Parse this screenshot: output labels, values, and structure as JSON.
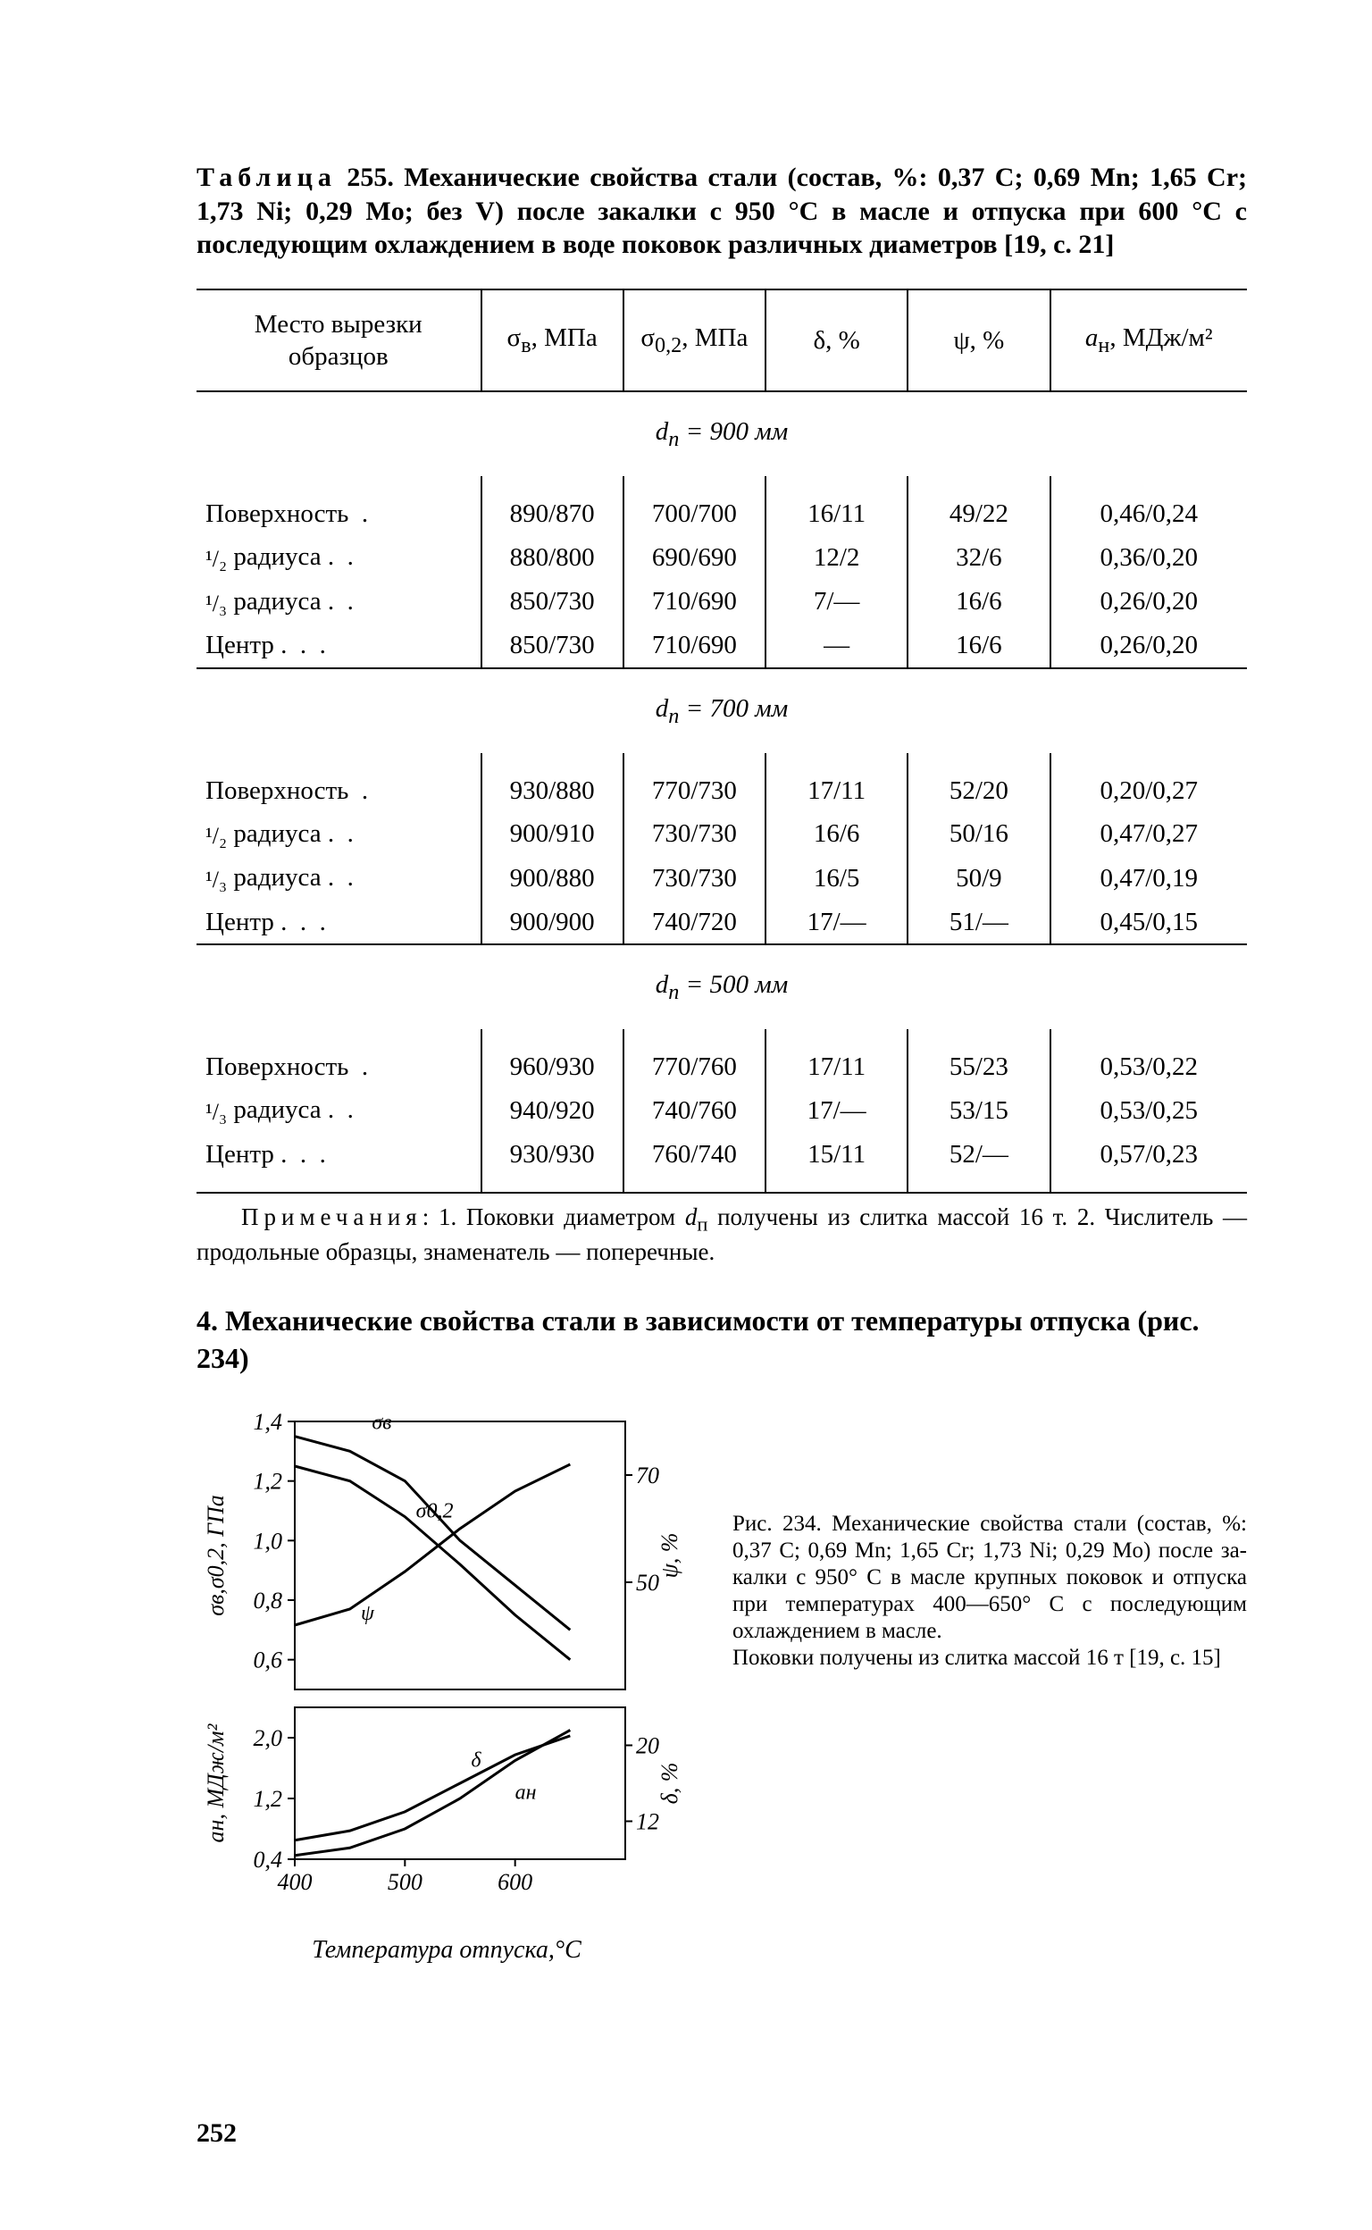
{
  "page_number": "252",
  "table_title_html": "<span class='sp'>Таблица</span> 255. Механические свойства стали (состав, %: 0,37 C; 0,69 Mn; 1,65 Cr; 1,73 Ni; 0,29 Mo; без V) после закалки с 950 °C в масле и отпуска при 600 °C с последующим охлаждением в воде поковок различных диаметров [19, с. 21]",
  "columns": [
    "Место вырезки<br>образцов",
    "σ<sub>в</sub>, МПа",
    "σ<sub>0,2</sub>, МПа",
    "δ, %",
    "ψ, %",
    "<i>a</i><sub>н</sub>, МДж/м²"
  ],
  "sections": [
    {
      "heading_html": "<i>d</i><sub>п</sub> = <i>900 мм</i>",
      "rows": [
        [
          "Поверхность&nbsp;&nbsp;.",
          "890/870",
          "700/700",
          "16/11",
          "49/22",
          "0,46/0,24"
        ],
        [
          "<span class='frac'>¹/₂</span> радиуса .&nbsp;&nbsp;.",
          "880/800",
          "690/690",
          "12/2",
          "32/6",
          "0,36/0,20"
        ],
        [
          "<span class='frac'>¹/₃</span> радиуса .&nbsp;&nbsp;.",
          "850/730",
          "710/690",
          "7/—",
          "16/6",
          "0,26/0,20"
        ],
        [
          "Центр .&nbsp;&nbsp;.&nbsp;&nbsp;.",
          "850/730",
          "710/690",
          "—",
          "16/6",
          "0,26/0,20"
        ]
      ]
    },
    {
      "heading_html": "<i>d</i><sub>п</sub> = <i>700 мм</i>",
      "rows": [
        [
          "Поверхность&nbsp;&nbsp;.",
          "930/880",
          "770/730",
          "17/11",
          "52/20",
          "0,20/0,27"
        ],
        [
          "<span class='frac'>¹/₂</span> радиуса .&nbsp;&nbsp;.",
          "900/910",
          "730/730",
          "16/6",
          "50/16",
          "0,47/0,27"
        ],
        [
          "<span class='frac'>¹/₃</span> радиуса .&nbsp;&nbsp;.",
          "900/880",
          "730/730",
          "16/5",
          "50/9",
          "0,47/0,19"
        ],
        [
          "Центр .&nbsp;&nbsp;.&nbsp;&nbsp;.",
          "900/900",
          "740/720",
          "17/—",
          "51/—",
          "0,45/0,15"
        ]
      ]
    },
    {
      "heading_html": "<i>d</i><sub>п</sub> = <i>500 мм</i>",
      "rows": [
        [
          "Поверхность&nbsp;&nbsp;.",
          "960/930",
          "770/760",
          "17/11",
          "55/23",
          "0,53/0,22"
        ],
        [
          "<span class='frac'>¹/₃</span> радиуса .&nbsp;&nbsp;.",
          "940/920",
          "740/760",
          "17/—",
          "53/15",
          "0,53/0,25"
        ],
        [
          "Центр .&nbsp;&nbsp;.&nbsp;&nbsp;.",
          "930/930",
          "760/740",
          "15/11",
          "52/—",
          "0,57/0,23"
        ]
      ]
    }
  ],
  "notes_html": "<span class='sp'>Примечания</span>: 1. Поковки диаметром <i>d</i><sub>п</sub> получены из слитка массой 16 т. 2. Числитель — продольные образцы, знаменатель — поперечные.",
  "section_heading": "4. Механические свойства стали в зависимости от температуры отпуска (рис. 234)",
  "fig_caption_html": "Рис. 234. Механические свойства стали (состав, %: 0,37 C; 0,69 Mn; 1,65 Cr; 1,73 Ni; 0,29 Mo) после за­калки с 950° C в масле крупных поковок и отпуска при температу­рах 400—650° C с последующим охлаждением в масле.<br>Поковки получены из слитка мас­сой 16 т [19, с. 15]",
  "chart": {
    "type": "line",
    "background": "#ffffff",
    "stroke": "#000000",
    "stroke_width": 2,
    "font_size_axis": 26,
    "xlabel": "Температура отпуска,°С",
    "x": {
      "min": 400,
      "max": 700,
      "ticks": [
        400,
        500,
        600
      ]
    },
    "y_left_upper": {
      "label": "σв,σ0,2, ГПа",
      "ticks": [
        "0,6",
        "0,8",
        "1,0",
        "1,2",
        "1,4"
      ],
      "min": 0.5,
      "max": 1.4
    },
    "y_left_lower": {
      "label": "aн, МДж/м²",
      "ticks": [
        "0,4",
        "1,2",
        "2,0"
      ],
      "min": 0.4,
      "max": 2.4
    },
    "y_right_upper": {
      "label": "ψ, %",
      "ticks": [
        50,
        70
      ]
    },
    "y_right_lower": {
      "label": "δ, %",
      "ticks": [
        12,
        20
      ]
    },
    "series": {
      "sigma_v": {
        "label": "σв",
        "pts": [
          [
            400,
            1.35
          ],
          [
            450,
            1.3
          ],
          [
            500,
            1.2
          ],
          [
            550,
            1.0
          ],
          [
            600,
            0.85
          ],
          [
            650,
            0.7
          ]
        ]
      },
      "sigma_02": {
        "label": "σ0,2",
        "pts": [
          [
            400,
            1.25
          ],
          [
            450,
            1.2
          ],
          [
            500,
            1.08
          ],
          [
            550,
            0.92
          ],
          [
            600,
            0.75
          ],
          [
            650,
            0.6
          ]
        ]
      },
      "psi": {
        "label": "ψ",
        "pts": [
          [
            400,
            42
          ],
          [
            450,
            45
          ],
          [
            500,
            52
          ],
          [
            550,
            60
          ],
          [
            600,
            67
          ],
          [
            650,
            72
          ]
        ]
      },
      "delta": {
        "label": "δ",
        "pts": [
          [
            400,
            10
          ],
          [
            450,
            11
          ],
          [
            500,
            13
          ],
          [
            550,
            16
          ],
          [
            600,
            19
          ],
          [
            650,
            21
          ]
        ]
      },
      "a_n": {
        "label": "aн",
        "pts": [
          [
            400,
            0.45
          ],
          [
            450,
            0.55
          ],
          [
            500,
            0.8
          ],
          [
            550,
            1.2
          ],
          [
            600,
            1.7
          ],
          [
            650,
            2.1
          ]
        ]
      }
    }
  }
}
